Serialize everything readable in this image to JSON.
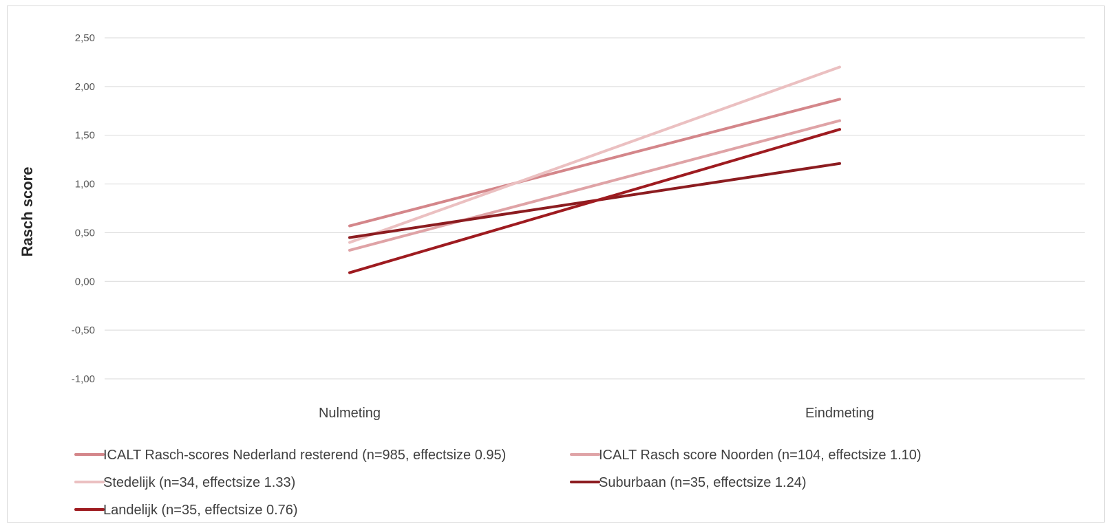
{
  "chart_data": {
    "type": "line",
    "title": "",
    "xlabel": "",
    "ylabel": "Rasch score",
    "categories": [
      "Nulmeting",
      "Eindmeting"
    ],
    "ylim": [
      -1.0,
      2.5
    ],
    "y_ticks": [
      "2,50",
      "2,00",
      "1,50",
      "1,00",
      "0,50",
      "0,00",
      "-0,50",
      "-1,00"
    ],
    "y_tick_values": [
      2.5,
      2.0,
      1.5,
      1.0,
      0.5,
      0.0,
      -0.5,
      -1.0
    ],
    "grid": true,
    "legend_position": "bottom",
    "series": [
      {
        "name": "ICALT Rasch-scores Nederland resterend (n=985, effectsize 0.95)",
        "values": [
          0.57,
          1.87
        ],
        "color": "#d4868a"
      },
      {
        "name": "ICALT Rasch score Noorden (n=104, effectsize 1.10)",
        "values": [
          0.32,
          1.65
        ],
        "color": "#dfa3a6"
      },
      {
        "name": "Stedelijk  (n=34, effectsize 1.33)",
        "values": [
          0.4,
          2.2
        ],
        "color": "#ebc0c1"
      },
      {
        "name": "Suburbaan (n=35, effectsize 1.24)",
        "values": [
          0.45,
          1.21
        ],
        "color": "#8c1c20"
      },
      {
        "name": "Landelijk  (n=35, effectsize 0.76)",
        "values": [
          0.09,
          1.56
        ],
        "color": "#9e1b20"
      }
    ]
  }
}
